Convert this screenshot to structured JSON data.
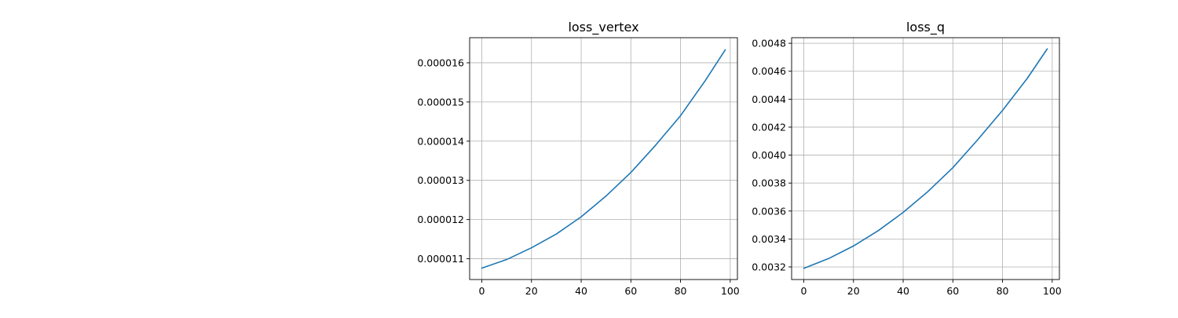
{
  "chart_data": [
    {
      "type": "line",
      "title": "loss_vertex",
      "xlabel": "",
      "ylabel": "",
      "xlim": [
        -4.9,
        102.9
      ],
      "ylim": [
        1.047e-05,
        1.664e-05
      ],
      "xticks": [
        0,
        20,
        40,
        60,
        80,
        100
      ],
      "xtick_labels": [
        "0",
        "20",
        "40",
        "60",
        "80",
        "100"
      ],
      "yticks": [
        1.1e-05,
        1.2e-05,
        1.3e-05,
        1.4e-05,
        1.5e-05,
        1.6e-05
      ],
      "ytick_labels": [
        "0.000011",
        "0.000012",
        "0.000013",
        "0.000014",
        "0.000015",
        "0.000016"
      ],
      "grid": true,
      "series": [
        {
          "color": "#1f77b4",
          "x": [
            0,
            10,
            20,
            30,
            40,
            50,
            60,
            70,
            80,
            90,
            98
          ],
          "y": [
            1.076e-05,
            1.098e-05,
            1.128e-05,
            1.163e-05,
            1.207e-05,
            1.26e-05,
            1.32e-05,
            1.39e-05,
            1.465e-05,
            1.555e-05,
            1.633e-05
          ]
        }
      ]
    },
    {
      "type": "line",
      "title": "loss_q",
      "xlabel": "",
      "ylabel": "",
      "xlim": [
        -4.9,
        102.9
      ],
      "ylim": [
        0.00311,
        0.00484
      ],
      "xticks": [
        0,
        20,
        40,
        60,
        80,
        100
      ],
      "xtick_labels": [
        "0",
        "20",
        "40",
        "60",
        "80",
        "100"
      ],
      "yticks": [
        0.0032,
        0.0034,
        0.0036,
        0.0038,
        0.004,
        0.0042,
        0.0044,
        0.0046,
        0.0048
      ],
      "ytick_labels": [
        "0.0032",
        "0.0034",
        "0.0036",
        "0.0038",
        "0.0040",
        "0.0042",
        "0.0044",
        "0.0046",
        "0.0048"
      ],
      "grid": true,
      "series": [
        {
          "color": "#1f77b4",
          "x": [
            0,
            10,
            20,
            30,
            40,
            50,
            60,
            70,
            80,
            90,
            98
          ],
          "y": [
            0.00319,
            0.00326,
            0.00335,
            0.00346,
            0.00359,
            0.00374,
            0.00391,
            0.00411,
            0.00432,
            0.00455,
            0.00476
          ]
        }
      ]
    }
  ]
}
